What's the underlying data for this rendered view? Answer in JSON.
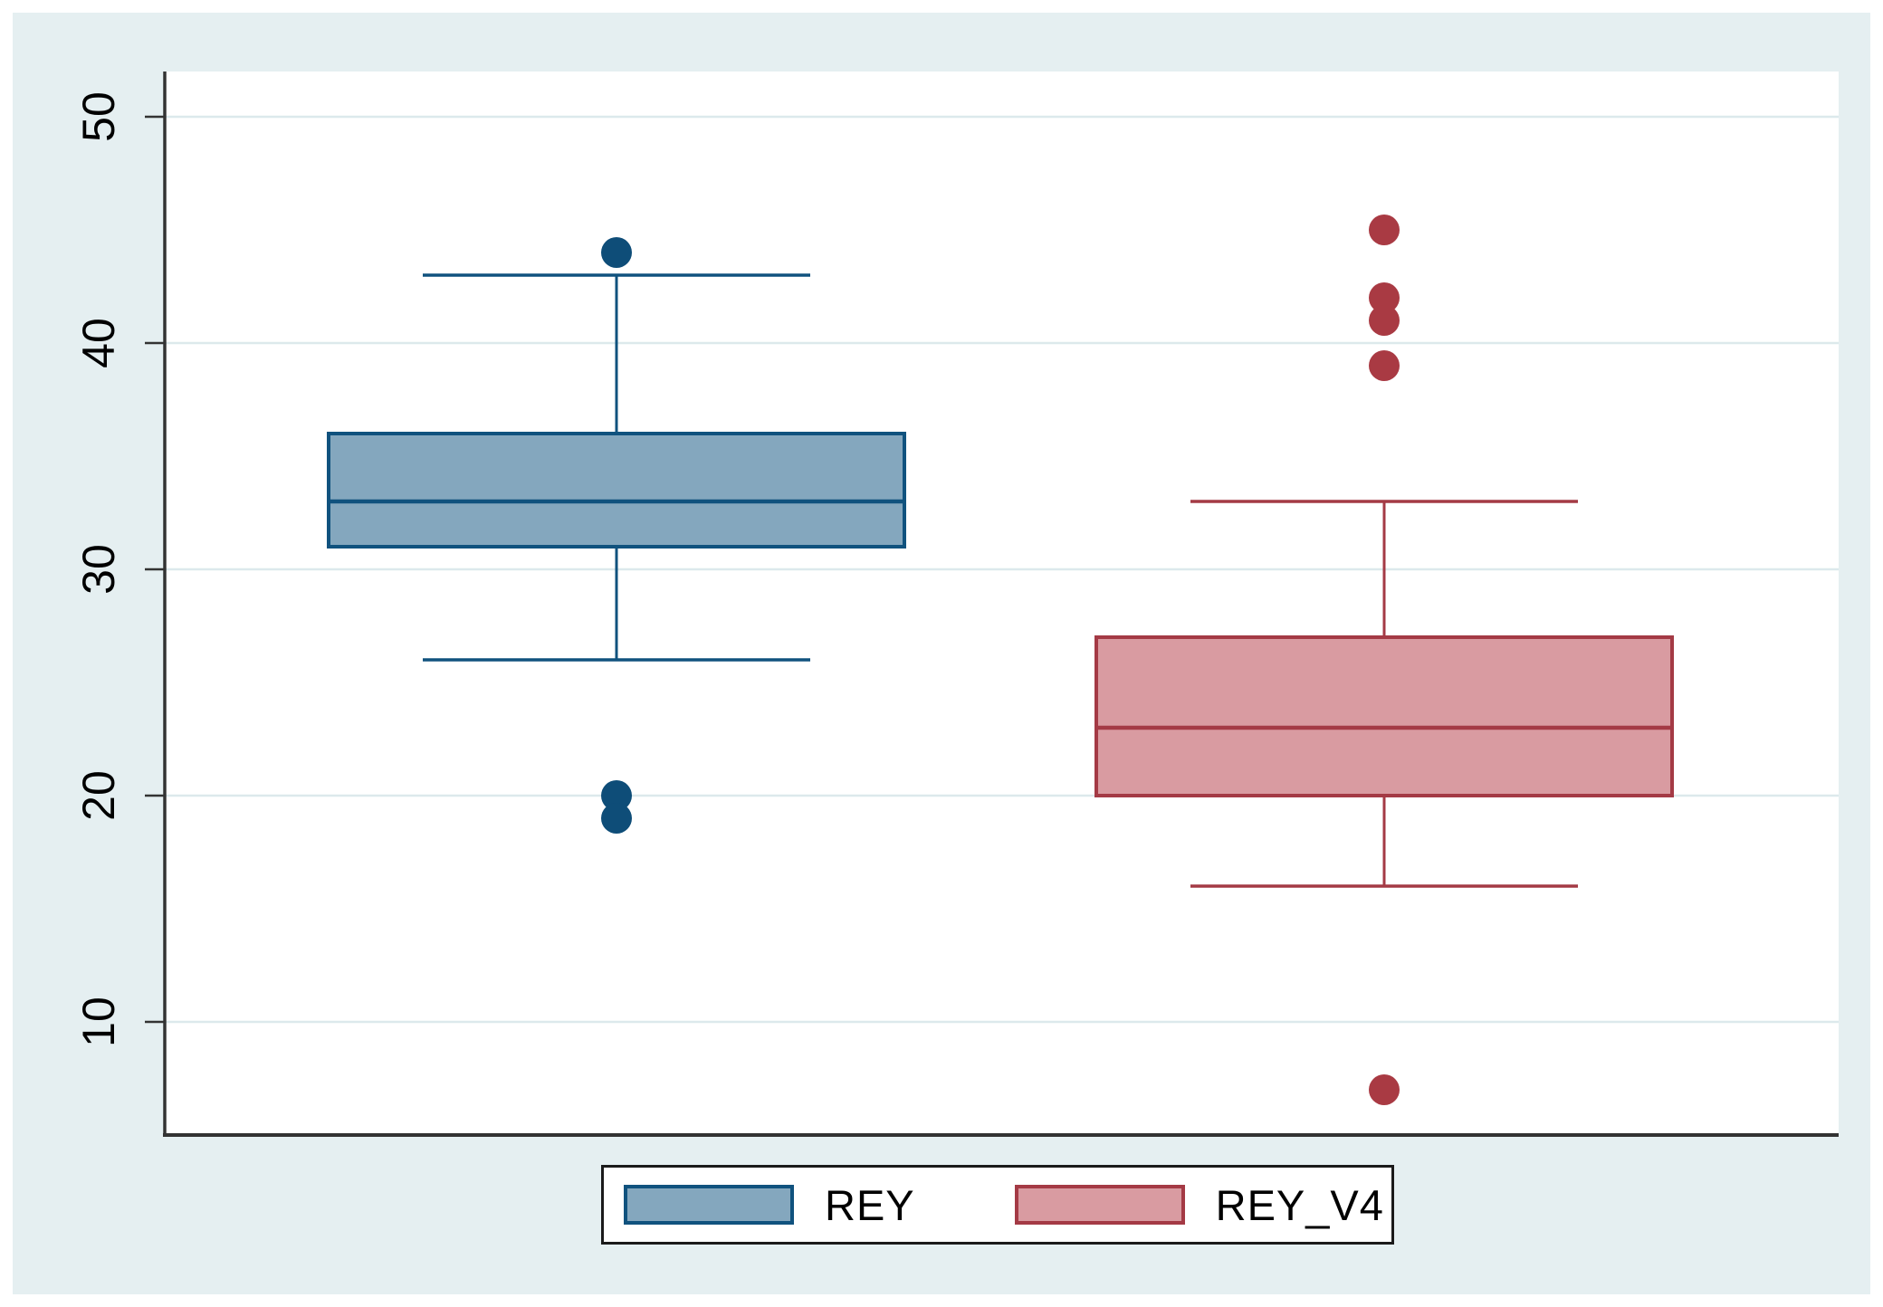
{
  "chart_data": {
    "type": "boxplot",
    "orientation": "vertical",
    "title": "",
    "xlabel": "",
    "ylabel": "",
    "ylim": [
      5,
      52
    ],
    "yticks": [
      "10",
      "20",
      "30",
      "40",
      "50"
    ],
    "ytick_values": [
      10,
      20,
      30,
      40,
      50
    ],
    "grid": true,
    "legend_position": "bottom",
    "series": [
      {
        "name": "REY",
        "q1": 31,
        "median": 33,
        "q3": 36,
        "whisker_low": 26,
        "whisker_high": 43,
        "outliers": [
          44,
          20,
          19
        ],
        "fill": "#84a7be",
        "stroke": "#10527e",
        "dot_color": "#0e4d78"
      },
      {
        "name": "REY_V4",
        "q1": 20,
        "median": 23,
        "q3": 27,
        "whisker_low": 16,
        "whisker_high": 33,
        "outliers": [
          45,
          42,
          41,
          39,
          7
        ],
        "fill": "#d99ba1",
        "stroke": "#a43a45",
        "dot_color": "#a93a43"
      }
    ],
    "colors": {
      "canvas_background": "#e5eff1",
      "plot_background": "#ffffff",
      "gridline": "#dce9ec",
      "axis": "#333333",
      "tick_label": "#000000",
      "legend_border": "#1a1a1a"
    }
  },
  "legend": {
    "items": [
      {
        "label": "REY"
      },
      {
        "label": "REY_V4"
      }
    ]
  }
}
